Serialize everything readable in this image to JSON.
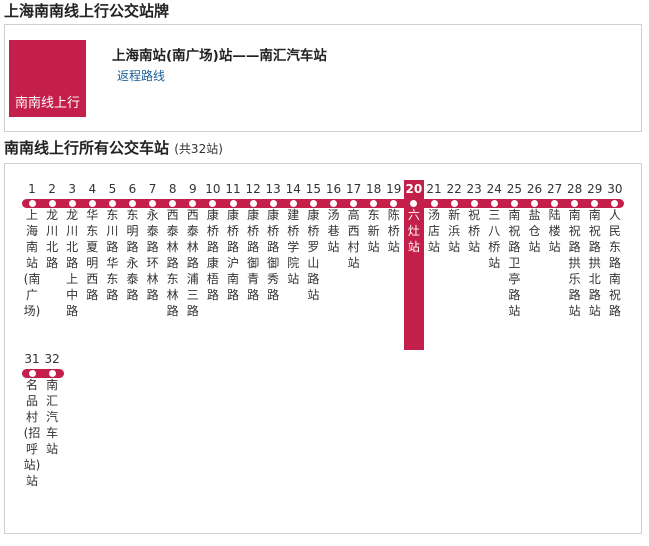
{
  "page_title": "上海南南线上行公交站牌",
  "route_card": {
    "logo_label": "南南线上行",
    "route": "上海南站(南广场)站——南汇汽车站",
    "return_link": "返程路线"
  },
  "section": {
    "title": "南南线上行所有公交车站",
    "count": "(共32站)"
  },
  "current_stop": 20,
  "colors": {
    "accent": "#c41e4a",
    "link": "#1a5e94",
    "border": "#cfcfcf"
  },
  "stops": [
    {
      "num": "1",
      "name": "上海南站(南广场)"
    },
    {
      "num": "2",
      "name": "龙川北路"
    },
    {
      "num": "3",
      "name": "龙川北路上中路"
    },
    {
      "num": "4",
      "name": "华东夏明西路"
    },
    {
      "num": "5",
      "name": "东川路华东路"
    },
    {
      "num": "6",
      "name": "东明路永泰路"
    },
    {
      "num": "7",
      "name": "永泰路环林路"
    },
    {
      "num": "8",
      "name": "西泰林路东林路"
    },
    {
      "num": "9",
      "name": "西泰林路浦三路"
    },
    {
      "num": "10",
      "name": "康桥路康梧路"
    },
    {
      "num": "11",
      "name": "康桥路沪南路"
    },
    {
      "num": "12",
      "name": "康桥路御青路"
    },
    {
      "num": "13",
      "name": "康桥路御秀路"
    },
    {
      "num": "14",
      "name": "建桥学院站"
    },
    {
      "num": "15",
      "name": "康桥罗山路站"
    },
    {
      "num": "16",
      "name": "汤巷站"
    },
    {
      "num": "17",
      "name": "高西村站"
    },
    {
      "num": "18",
      "name": "东新站"
    },
    {
      "num": "19",
      "name": "陈桥站"
    },
    {
      "num": "20",
      "name": "六灶站"
    },
    {
      "num": "21",
      "name": "汤店站"
    },
    {
      "num": "22",
      "name": "新浜站"
    },
    {
      "num": "23",
      "name": "祝桥站"
    },
    {
      "num": "24",
      "name": "三八桥站"
    },
    {
      "num": "25",
      "name": "南祝路卫亭路站"
    },
    {
      "num": "26",
      "name": "盐仓站"
    },
    {
      "num": "27",
      "name": "陆楼站"
    },
    {
      "num": "28",
      "name": "南祝路拱乐路站"
    },
    {
      "num": "29",
      "name": "南祝路拱北路站"
    },
    {
      "num": "30",
      "name": "人民东路南祝路"
    },
    {
      "num": "31",
      "name": "名品村(招呼站)站"
    },
    {
      "num": "32",
      "name": "南汇汽车站"
    }
  ]
}
